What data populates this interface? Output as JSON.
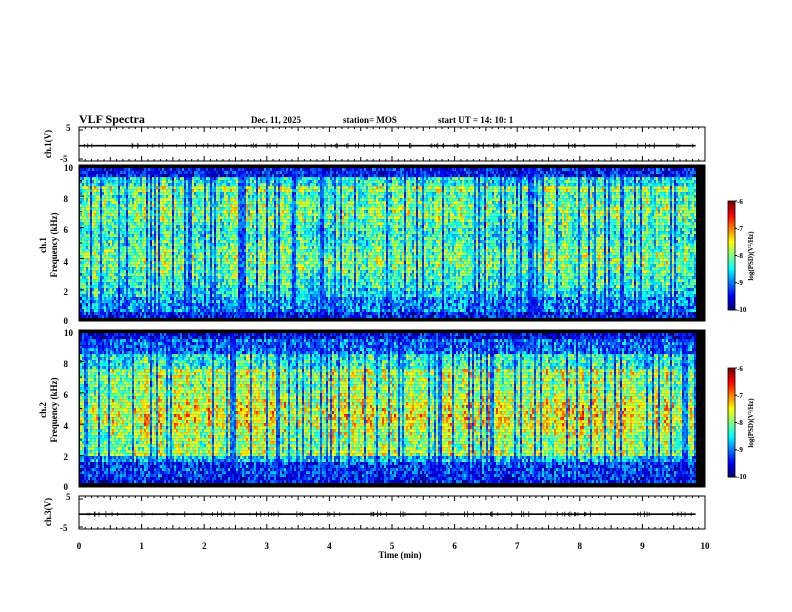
{
  "header": {
    "title": "VLF Spectra",
    "date": "Dec. 11, 2025",
    "station": "station= MOS",
    "start": "start  UT  =   14: 10: 1"
  },
  "chart_data": [
    {
      "type": "line",
      "panel": "ch1-voltage",
      "title": "",
      "ylabel": "ch.1(V)",
      "x_range": [
        0,
        10
      ],
      "ylim": [
        -5,
        5
      ],
      "yticks": [
        "5",
        "-5"
      ],
      "trace_level_V": -0.5,
      "data_end_min": 9.85
    },
    {
      "type": "heatmap",
      "panel": "ch1-spectrogram",
      "ylabel_top": "ch.1",
      "ylabel": "Frequency  (kHz)",
      "x_range": [
        0,
        10
      ],
      "ylim": [
        0,
        10
      ],
      "yticks": [
        "0",
        "2",
        "4",
        "6",
        "8",
        "10"
      ],
      "band_kHz": [
        0.3,
        9.8
      ],
      "colorbar": {
        "label": "log(PSD)(V²/Hz)",
        "range": [
          -10,
          -6
        ],
        "ticks": [
          "-6",
          "-7",
          "-8",
          "-9",
          "-10"
        ]
      }
    },
    {
      "type": "heatmap",
      "panel": "ch2-spectrogram",
      "ylabel_top": "ch.2",
      "ylabel": "Frequency  (kHz)",
      "x_range": [
        0,
        10
      ],
      "ylim": [
        0,
        10
      ],
      "yticks": [
        "0",
        "2",
        "4",
        "6",
        "8",
        "10"
      ],
      "band_kHz": [
        0.3,
        9.8
      ],
      "colorbar": {
        "label": "log(PSD)(V²/Hz)",
        "range": [
          -10,
          -6
        ],
        "ticks": [
          "-6",
          "-7",
          "-8",
          "-9",
          "-10"
        ]
      }
    },
    {
      "type": "line",
      "panel": "ch3-voltage",
      "title": "",
      "ylabel": "ch.3(V)",
      "x_range": [
        0,
        10
      ],
      "ylim": [
        -5,
        5
      ],
      "yticks": [
        "5",
        "-5"
      ],
      "trace_level_V": -0.5,
      "data_end_min": 9.85,
      "xlabel": "Time  (min)",
      "xticks": [
        "0",
        "1",
        "2",
        "3",
        "4",
        "5",
        "6",
        "7",
        "8",
        "9",
        "10"
      ]
    }
  ]
}
